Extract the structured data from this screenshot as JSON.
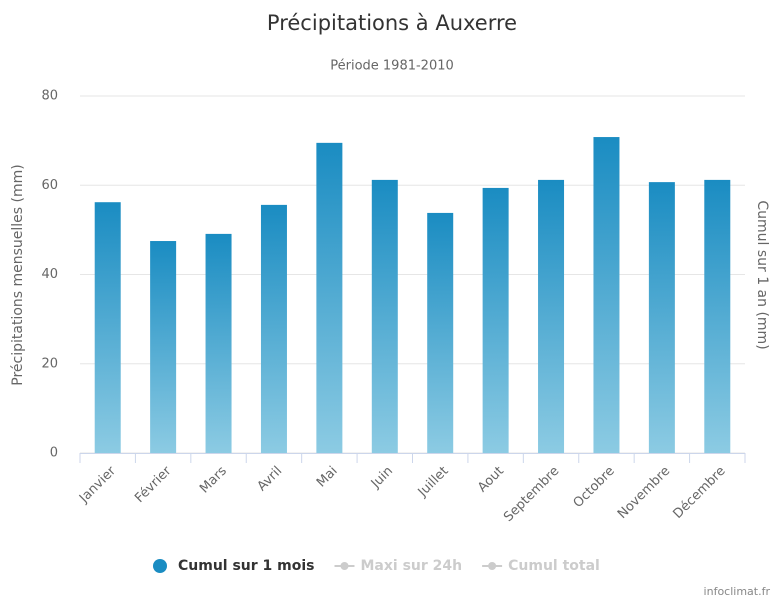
{
  "chart_data": {
    "type": "bar",
    "title": "Précipitations à Auxerre",
    "subtitle": "Période 1981-2010",
    "y_label": "Précipitations mensuelles (mm)",
    "y2_label": "Cumul sur 1 an (mm)",
    "categories": [
      "Janvier",
      "Février",
      "Mars",
      "Avril",
      "Mai",
      "Juin",
      "Juillet",
      "Aout",
      "Septembre",
      "Octobre",
      "Novembre",
      "Décembre"
    ],
    "series": [
      {
        "name": "Cumul sur 1 mois",
        "color": "#1a8cc2",
        "values": [
          56.2,
          47.5,
          49.1,
          55.6,
          69.5,
          61.2,
          53.8,
          59.4,
          61.2,
          70.8,
          60.7,
          61.2
        ]
      }
    ],
    "legend": [
      {
        "name": "Maxi sur 24h",
        "visible": false
      },
      {
        "name": "Cumul total",
        "visible": false
      }
    ],
    "ylim": [
      0,
      80
    ],
    "yticks": [
      0,
      20,
      40,
      60,
      80
    ],
    "grid": true,
    "credit": "infoclimat.fr"
  }
}
